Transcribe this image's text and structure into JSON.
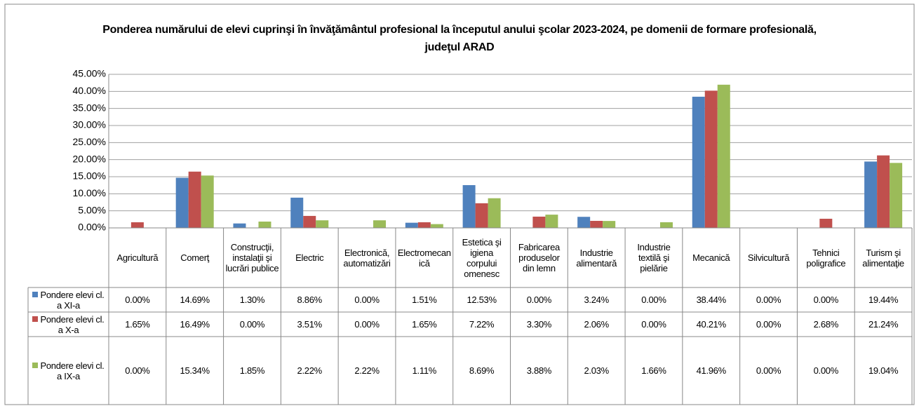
{
  "chart_data": {
    "type": "bar",
    "title": "Ponderea numărului de elevi cuprinşi în învăţământul profesional la începutul anului şcolar 2023-2024, pe domenii de formare profesională, judeţul ARAD",
    "categories": [
      "Agricultură",
      "Comerţ",
      "Construcţii, instalaţii şi lucrări publice",
      "Electric",
      "Electronică, automatizări",
      "Electromecanică",
      "Estetica şi igiena corpului omenesc",
      "Fabricarea produselor din lemn",
      "Industrie alimentară",
      "Industrie textilă şi pielărie",
      "Mecanică",
      "Silvicultură",
      "Tehnici poligrafice",
      "Turism şi alimentaţie"
    ],
    "series": [
      {
        "name": "Pondere elevi cl. a XI-a",
        "color": "#4f81bd",
        "values": [
          0,
          14.69,
          1.3,
          8.86,
          0,
          1.51,
          12.53,
          0,
          3.24,
          0,
          38.44,
          0,
          0,
          19.44
        ],
        "value_labels": [
          "0.00%",
          "14.69%",
          "1.30%",
          "8.86%",
          "0.00%",
          "1.51%",
          "12.53%",
          "0.00%",
          "3.24%",
          "0.00%",
          "38.44%",
          "0.00%",
          "0.00%",
          "19.44%"
        ]
      },
      {
        "name": "Pondere elevi cl. a X-a",
        "color": "#c0504d",
        "values": [
          1.65,
          16.49,
          0,
          3.51,
          0,
          1.65,
          7.22,
          3.3,
          2.06,
          0,
          40.21,
          0,
          2.68,
          21.24
        ],
        "value_labels": [
          "1.65%",
          "16.49%",
          "0.00%",
          "3.51%",
          "0.00%",
          "1.65%",
          "7.22%",
          "3.30%",
          "2.06%",
          "0.00%",
          "40.21%",
          "0.00%",
          "2.68%",
          "21.24%"
        ]
      },
      {
        "name": "Pondere elevi cl. a IX-a",
        "color": "#9bbb59",
        "values": [
          0,
          15.34,
          1.85,
          2.22,
          2.22,
          1.11,
          8.69,
          3.88,
          2.03,
          1.66,
          41.96,
          0,
          0,
          19.04
        ],
        "value_labels": [
          "0.00%",
          "15.34%",
          "1.85%",
          "2.22%",
          "2.22%",
          "1.11%",
          "8.69%",
          "3.88%",
          "2.03%",
          "1.66%",
          "41.96%",
          "0.00%",
          "0.00%",
          "19.04%"
        ]
      }
    ],
    "ylim": [
      0,
      45
    ],
    "yticks": [
      {
        "value": 0,
        "label": "0.00%"
      },
      {
        "value": 5,
        "label": "5.00%"
      },
      {
        "value": 10,
        "label": "10.00%"
      },
      {
        "value": 15,
        "label": "15.00%"
      },
      {
        "value": 20,
        "label": "20.00%"
      },
      {
        "value": 25,
        "label": "25.00%"
      },
      {
        "value": 30,
        "label": "30.00%"
      },
      {
        "value": 35,
        "label": "35.00%"
      },
      {
        "value": 40,
        "label": "40.00%"
      },
      {
        "value": 45,
        "label": "45.00%"
      }
    ],
    "grid": true
  }
}
